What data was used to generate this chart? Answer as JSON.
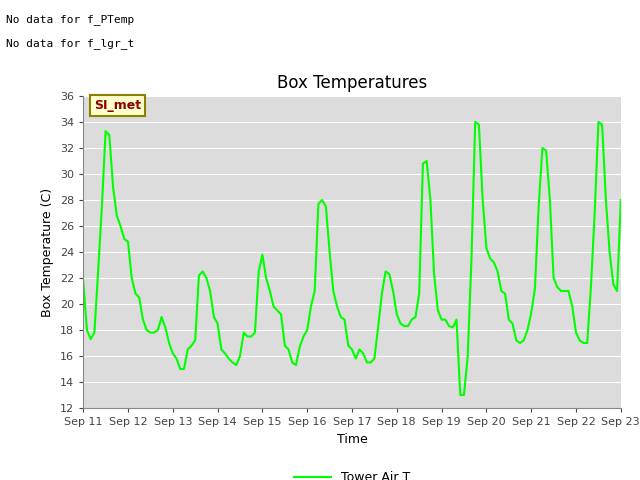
{
  "title": "Box Temperatures",
  "xlabel": "Time",
  "ylabel": "Box Temperature (C)",
  "ylim": [
    12,
    36
  ],
  "yticks": [
    12,
    14,
    16,
    18,
    20,
    22,
    24,
    26,
    28,
    30,
    32,
    34,
    36
  ],
  "line_color": "#00FF00",
  "line_width": 1.5,
  "bg_color": "#DCDCDC",
  "fig_bg_color": "#FFFFFF",
  "annotations": [
    "No data for f_PTemp",
    "No data for f_lgr_t"
  ],
  "si_met_label": "SI_met",
  "legend_label": "Tower Air T",
  "x_tick_labels": [
    "Sep 11",
    "Sep 12",
    "Sep 13",
    "Sep 14",
    "Sep 15",
    "Sep 16",
    "Sep 17",
    "Sep 18",
    "Sep 19",
    "Sep 20",
    "Sep 21",
    "Sep 22",
    "Sep 23"
  ],
  "x_tick_positions": [
    0,
    1,
    2,
    3,
    4,
    5,
    6,
    7,
    8,
    9,
    10,
    11,
    12
  ],
  "x_data": [
    0.0,
    0.083,
    0.167,
    0.25,
    0.333,
    0.417,
    0.5,
    0.583,
    0.667,
    0.75,
    0.833,
    0.917,
    1.0,
    1.083,
    1.167,
    1.25,
    1.333,
    1.417,
    1.5,
    1.583,
    1.667,
    1.75,
    1.833,
    1.917,
    2.0,
    2.083,
    2.167,
    2.25,
    2.333,
    2.417,
    2.5,
    2.583,
    2.667,
    2.75,
    2.833,
    2.917,
    3.0,
    3.083,
    3.167,
    3.25,
    3.333,
    3.417,
    3.5,
    3.583,
    3.667,
    3.75,
    3.833,
    3.917,
    4.0,
    4.083,
    4.167,
    4.25,
    4.333,
    4.417,
    4.5,
    4.583,
    4.667,
    4.75,
    4.833,
    4.917,
    5.0,
    5.083,
    5.167,
    5.25,
    5.333,
    5.417,
    5.5,
    5.583,
    5.667,
    5.75,
    5.833,
    5.917,
    6.0,
    6.083,
    6.167,
    6.25,
    6.333,
    6.417,
    6.5,
    6.583,
    6.667,
    6.75,
    6.833,
    6.917,
    7.0,
    7.083,
    7.167,
    7.25,
    7.333,
    7.417,
    7.5,
    7.583,
    7.667,
    7.75,
    7.833,
    7.917,
    8.0,
    8.083,
    8.167,
    8.25,
    8.333,
    8.417,
    8.5,
    8.583,
    8.667,
    8.75,
    8.833,
    8.917,
    9.0,
    9.083,
    9.167,
    9.25,
    9.333,
    9.417,
    9.5,
    9.583,
    9.667,
    9.75,
    9.833,
    9.917,
    10.0,
    10.083,
    10.167,
    10.25,
    10.333,
    10.417,
    10.5,
    10.583,
    10.667,
    10.75,
    10.833,
    10.917,
    11.0,
    11.083,
    11.167,
    11.25,
    11.333,
    11.417,
    11.5,
    11.583,
    11.667,
    11.75,
    11.833,
    11.917,
    12.0
  ],
  "y_data": [
    21.8,
    18.0,
    17.3,
    17.8,
    22.5,
    27.5,
    33.3,
    33.0,
    29.0,
    26.8,
    26.0,
    25.0,
    24.8,
    22.0,
    20.8,
    20.5,
    18.8,
    18.0,
    17.8,
    17.8,
    18.0,
    19.0,
    18.2,
    17.0,
    16.2,
    15.8,
    15.0,
    15.0,
    16.5,
    16.8,
    17.2,
    22.2,
    22.5,
    22.0,
    21.0,
    19.0,
    18.5,
    16.5,
    16.2,
    15.8,
    15.5,
    15.3,
    16.0,
    17.8,
    17.5,
    17.5,
    17.8,
    22.5,
    23.8,
    22.0,
    21.0,
    19.8,
    19.5,
    19.2,
    16.8,
    16.5,
    15.5,
    15.3,
    16.7,
    17.5,
    18.0,
    19.8,
    21.0,
    27.7,
    28.0,
    27.5,
    24.0,
    21.0,
    19.8,
    19.0,
    18.8,
    16.8,
    16.5,
    15.8,
    16.5,
    16.2,
    15.5,
    15.5,
    15.8,
    18.2,
    20.8,
    22.5,
    22.3,
    21.0,
    19.2,
    18.5,
    18.3,
    18.3,
    18.8,
    19.0,
    20.8,
    30.8,
    31.0,
    28.0,
    22.3,
    19.5,
    18.8,
    18.8,
    18.3,
    18.2,
    18.8,
    13.0,
    13.0,
    16.0,
    23.5,
    34.0,
    33.8,
    28.0,
    24.3,
    23.5,
    23.2,
    22.5,
    21.0,
    20.8,
    18.8,
    18.5,
    17.2,
    17.0,
    17.2,
    18.0,
    19.3,
    21.2,
    27.5,
    32.0,
    31.8,
    28.0,
    22.0,
    21.3,
    21.0,
    21.0,
    21.0,
    19.8,
    17.8,
    17.2,
    17.0,
    17.0,
    21.3,
    27.0,
    34.0,
    33.8,
    28.0,
    24.0,
    21.5,
    21.0,
    28.0
  ],
  "grid_color": "#FFFFFF",
  "title_fontsize": 12,
  "tick_fontsize": 8,
  "axis_label_fontsize": 9,
  "annot_fontsize": 8,
  "si_met_fontsize": 9,
  "legend_fontsize": 9
}
